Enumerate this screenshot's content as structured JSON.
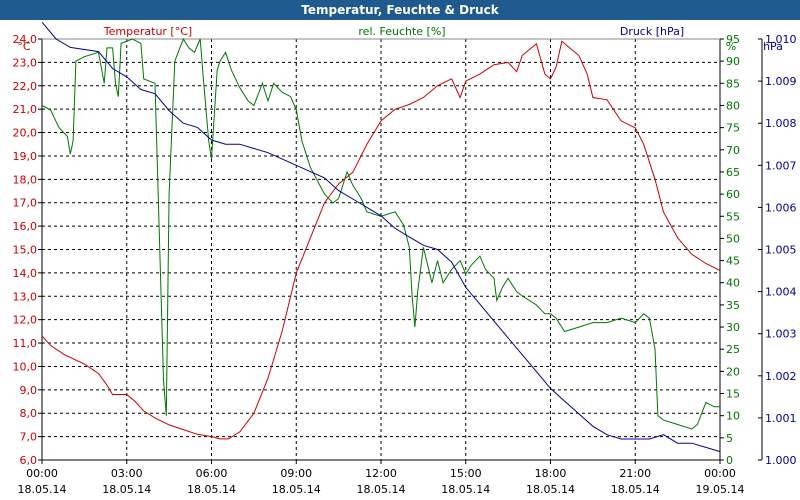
{
  "window": {
    "title": "Temperatur, Feuchte & Druck"
  },
  "chart_data": {
    "type": "line",
    "title": "Temperatur, Feuchte & Druck",
    "grid": true,
    "colors": {
      "temperature": "#cc0000",
      "humidity": "#007700",
      "pressure": "#000099",
      "title_bar": "#1f5a8f"
    },
    "x": {
      "range_hours": [
        0,
        24
      ],
      "ticks": [
        {
          "time": "00:00",
          "date": "18.05.14",
          "hour": 0
        },
        {
          "time": "03:00",
          "date": "18.05.14",
          "hour": 3
        },
        {
          "time": "06:00",
          "date": "18.05.14",
          "hour": 6
        },
        {
          "time": "09:00",
          "date": "18.05.14",
          "hour": 9
        },
        {
          "time": "12:00",
          "date": "18.05.14",
          "hour": 12
        },
        {
          "time": "15:00",
          "date": "18.05.14",
          "hour": 15
        },
        {
          "time": "18:00",
          "date": "18.05.14",
          "hour": 18
        },
        {
          "time": "21:00",
          "date": "18.05.14",
          "hour": 21
        },
        {
          "time": "00:00",
          "date": "19.05.14",
          "hour": 24
        }
      ]
    },
    "axes": {
      "temperature": {
        "label": "Temperatur [°C]",
        "unit": "°C",
        "min": 6.0,
        "max": 24.0,
        "ticks": [
          "6,0",
          "7,0",
          "8,0",
          "9,0",
          "10,0",
          "11,0",
          "12,0",
          "13,0",
          "14,0",
          "15,0",
          "16,0",
          "17,0",
          "18,0",
          "19,0",
          "20,0",
          "21,0",
          "22,0",
          "23,0",
          "24,0"
        ]
      },
      "humidity": {
        "label": "rel. Feuchte [%]",
        "unit": "%",
        "min": 0,
        "max": 95,
        "ticks": [
          "0",
          "5",
          "10",
          "15",
          "20",
          "25",
          "30",
          "35",
          "40",
          "45",
          "50",
          "55",
          "60",
          "65",
          "70",
          "75",
          "80",
          "85",
          "90",
          "95"
        ]
      },
      "pressure": {
        "label": "Druck [hPa]",
        "unit": "hPa",
        "min": 1.0,
        "max": 1.01,
        "ticks": [
          "1.000",
          "1.001",
          "1.002",
          "1.003",
          "1.004",
          "1.005",
          "1.006",
          "1.007",
          "1.008",
          "1.009",
          "1.010"
        ]
      }
    },
    "series": [
      {
        "name": "Temperatur",
        "axis": "temperature",
        "points": [
          [
            0,
            11.3
          ],
          [
            0.3,
            10.9
          ],
          [
            0.8,
            10.5
          ],
          [
            1.5,
            10.1
          ],
          [
            2.0,
            9.7
          ],
          [
            2.3,
            9.2
          ],
          [
            2.5,
            8.8
          ],
          [
            3.0,
            8.8
          ],
          [
            3.3,
            8.5
          ],
          [
            3.6,
            8.1
          ],
          [
            4.0,
            7.8
          ],
          [
            4.5,
            7.5
          ],
          [
            5.0,
            7.3
          ],
          [
            5.5,
            7.1
          ],
          [
            6.0,
            7.0
          ],
          [
            6.3,
            6.9
          ],
          [
            6.6,
            6.9
          ],
          [
            7.0,
            7.2
          ],
          [
            7.5,
            8.0
          ],
          [
            8.0,
            9.5
          ],
          [
            8.5,
            11.5
          ],
          [
            9.0,
            14.0
          ],
          [
            9.5,
            15.5
          ],
          [
            10.0,
            17.0
          ],
          [
            10.5,
            17.8
          ],
          [
            11.0,
            18.3
          ],
          [
            11.5,
            19.5
          ],
          [
            12.0,
            20.5
          ],
          [
            12.5,
            21.0
          ],
          [
            13.0,
            21.2
          ],
          [
            13.5,
            21.5
          ],
          [
            14.0,
            22.0
          ],
          [
            14.5,
            22.3
          ],
          [
            14.8,
            21.5
          ],
          [
            15.0,
            22.2
          ],
          [
            15.5,
            22.5
          ],
          [
            16.0,
            22.9
          ],
          [
            16.5,
            23.0
          ],
          [
            16.8,
            22.6
          ],
          [
            17.0,
            23.3
          ],
          [
            17.5,
            23.8
          ],
          [
            17.8,
            22.5
          ],
          [
            18.0,
            22.3
          ],
          [
            18.2,
            22.8
          ],
          [
            18.4,
            23.9
          ],
          [
            18.7,
            23.6
          ],
          [
            19.0,
            23.3
          ],
          [
            19.3,
            22.5
          ],
          [
            19.5,
            21.5
          ],
          [
            20.0,
            21.4
          ],
          [
            20.5,
            20.5
          ],
          [
            21.0,
            20.2
          ],
          [
            21.3,
            19.5
          ],
          [
            21.7,
            18.0
          ],
          [
            22.0,
            16.6
          ],
          [
            22.5,
            15.5
          ],
          [
            23.0,
            14.8
          ],
          [
            23.5,
            14.4
          ],
          [
            24.0,
            14.1
          ]
        ]
      },
      {
        "name": "rel. Feuchte",
        "axis": "humidity",
        "points": [
          [
            0,
            80
          ],
          [
            0.3,
            79
          ],
          [
            0.6,
            75
          ],
          [
            0.9,
            73
          ],
          [
            1.0,
            69
          ],
          [
            1.1,
            72
          ],
          [
            1.2,
            90
          ],
          [
            1.5,
            91
          ],
          [
            2.0,
            92
          ],
          [
            2.2,
            85
          ],
          [
            2.3,
            93
          ],
          [
            2.5,
            93
          ],
          [
            2.6,
            85
          ],
          [
            2.7,
            82
          ],
          [
            2.8,
            94
          ],
          [
            3.2,
            95
          ],
          [
            3.5,
            94
          ],
          [
            3.6,
            86
          ],
          [
            4.0,
            85
          ],
          [
            4.3,
            18
          ],
          [
            4.4,
            10
          ],
          [
            4.5,
            60
          ],
          [
            4.7,
            90
          ],
          [
            5.0,
            95
          ],
          [
            5.2,
            93
          ],
          [
            5.4,
            92
          ],
          [
            5.6,
            95
          ],
          [
            5.7,
            87
          ],
          [
            5.9,
            72
          ],
          [
            6.0,
            68
          ],
          [
            6.2,
            88
          ],
          [
            6.3,
            90
          ],
          [
            6.5,
            92
          ],
          [
            6.7,
            88
          ],
          [
            7.0,
            84
          ],
          [
            7.3,
            81
          ],
          [
            7.5,
            80
          ],
          [
            7.8,
            85
          ],
          [
            8.0,
            81
          ],
          [
            8.2,
            85
          ],
          [
            8.5,
            83
          ],
          [
            8.8,
            82
          ],
          [
            9.0,
            79
          ],
          [
            9.2,
            72
          ],
          [
            9.5,
            66
          ],
          [
            10.0,
            60
          ],
          [
            10.3,
            58
          ],
          [
            10.5,
            59
          ],
          [
            10.8,
            65
          ],
          [
            11.0,
            62
          ],
          [
            11.3,
            59
          ],
          [
            11.5,
            56
          ],
          [
            12.0,
            55
          ],
          [
            12.5,
            56
          ],
          [
            12.8,
            53
          ],
          [
            13.0,
            48
          ],
          [
            13.1,
            37
          ],
          [
            13.2,
            30
          ],
          [
            13.3,
            38
          ],
          [
            13.5,
            48
          ],
          [
            13.8,
            40
          ],
          [
            14.0,
            45
          ],
          [
            14.2,
            40
          ],
          [
            14.5,
            43
          ],
          [
            14.8,
            45
          ],
          [
            15.0,
            42
          ],
          [
            15.2,
            44
          ],
          [
            15.5,
            46
          ],
          [
            15.7,
            43
          ],
          [
            16.0,
            41
          ],
          [
            16.1,
            36
          ],
          [
            16.3,
            39
          ],
          [
            16.5,
            41
          ],
          [
            16.8,
            38
          ],
          [
            17.0,
            37
          ],
          [
            17.5,
            35
          ],
          [
            17.8,
            33
          ],
          [
            18.0,
            33
          ],
          [
            18.2,
            32
          ],
          [
            18.5,
            29
          ],
          [
            19.0,
            30
          ],
          [
            19.5,
            31
          ],
          [
            20.0,
            31
          ],
          [
            20.5,
            32
          ],
          [
            21.0,
            31
          ],
          [
            21.3,
            33
          ],
          [
            21.5,
            32
          ],
          [
            21.7,
            25
          ],
          [
            21.8,
            10
          ],
          [
            22.0,
            9
          ],
          [
            22.5,
            8
          ],
          [
            23.0,
            7
          ],
          [
            23.2,
            8
          ],
          [
            23.5,
            13
          ],
          [
            23.8,
            12
          ],
          [
            24.0,
            12
          ]
        ]
      },
      {
        "name": "Druck",
        "axis": "pressure",
        "points": [
          [
            0,
            1.0104
          ],
          [
            0.5,
            1.01
          ],
          [
            1.0,
            1.0098
          ],
          [
            2.0,
            1.0097
          ],
          [
            2.5,
            1.0093
          ],
          [
            3.0,
            1.0091
          ],
          [
            3.5,
            1.0088
          ],
          [
            4.0,
            1.0087
          ],
          [
            4.5,
            1.0083
          ],
          [
            5.0,
            1.008
          ],
          [
            5.5,
            1.0079
          ],
          [
            6.0,
            1.0076
          ],
          [
            6.5,
            1.0075
          ],
          [
            7.0,
            1.0075
          ],
          [
            7.5,
            1.0074
          ],
          [
            8.0,
            1.0073
          ],
          [
            9.0,
            1.007
          ],
          [
            10.0,
            1.0067
          ],
          [
            10.5,
            1.0064
          ],
          [
            11.0,
            1.0062
          ],
          [
            12.0,
            1.0058
          ],
          [
            12.5,
            1.0055
          ],
          [
            13.0,
            1.0053
          ],
          [
            13.5,
            1.0051
          ],
          [
            14.0,
            1.005
          ],
          [
            14.5,
            1.0047
          ],
          [
            15.0,
            1.0041
          ],
          [
            15.5,
            1.0037
          ],
          [
            16.0,
            1.0033
          ],
          [
            16.5,
            1.0029
          ],
          [
            17.0,
            1.0025
          ],
          [
            17.5,
            1.0021
          ],
          [
            18.0,
            1.0017
          ],
          [
            18.5,
            1.0014
          ],
          [
            19.0,
            1.0011
          ],
          [
            19.5,
            1.0008
          ],
          [
            20.0,
            1.0006
          ],
          [
            20.5,
            1.0005
          ],
          [
            21.0,
            1.0005
          ],
          [
            21.5,
            1.0005
          ],
          [
            22.0,
            1.0006
          ],
          [
            22.5,
            1.0004
          ],
          [
            23.0,
            1.0004
          ],
          [
            23.5,
            1.0003
          ],
          [
            24.0,
            1.0002
          ]
        ]
      }
    ]
  }
}
